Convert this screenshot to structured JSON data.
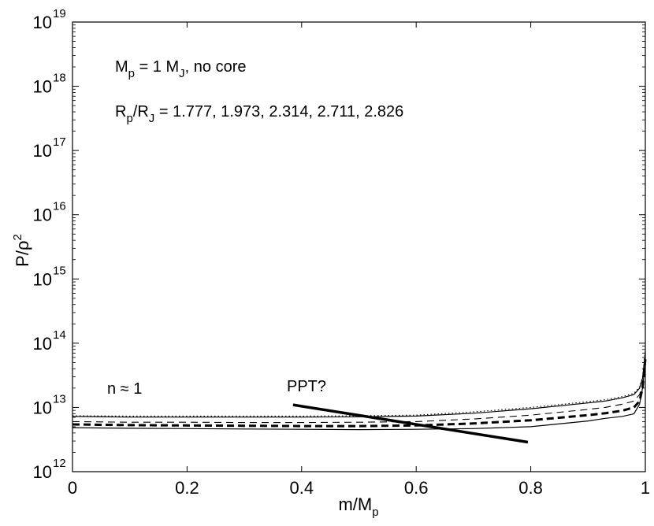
{
  "chart_data": {
    "type": "line",
    "xlabel": "m/M",
    "xlabel_sub": "p",
    "ylabel": "P/ρ",
    "ylabel_sup": "2",
    "xlim": [
      0,
      1
    ],
    "ylim_log10": [
      12,
      19
    ],
    "xticks": [
      {
        "value": 0,
        "label": "0"
      },
      {
        "value": 0.2,
        "label": "0.2"
      },
      {
        "value": 0.4,
        "label": "0.4"
      },
      {
        "value": 0.6,
        "label": "0.6"
      },
      {
        "value": 0.8,
        "label": "0.8"
      },
      {
        "value": 1,
        "label": "1"
      }
    ],
    "yticks": [
      {
        "exp": 12,
        "base": "10",
        "sup": "12"
      },
      {
        "exp": 13,
        "base": "10",
        "sup": "13"
      },
      {
        "exp": 14,
        "base": "10",
        "sup": "14"
      },
      {
        "exp": 15,
        "base": "10",
        "sup": "15"
      },
      {
        "exp": 16,
        "base": "10",
        "sup": "16"
      },
      {
        "exp": 17,
        "base": "10",
        "sup": "17"
      },
      {
        "exp": 18,
        "base": "10",
        "sup": "18"
      },
      {
        "exp": 19,
        "base": "10",
        "sup": "19"
      }
    ],
    "series": [
      {
        "name": "R/RJ = 1.777",
        "style": "solid-thin",
        "x": [
          0,
          0.1,
          0.2,
          0.3,
          0.4,
          0.5,
          0.6,
          0.7,
          0.8,
          0.9,
          0.93,
          0.96,
          0.98,
          0.99,
          0.995,
          1.0
        ],
        "log10y": [
          12.685,
          12.675,
          12.67,
          12.665,
          12.66,
          12.655,
          12.66,
          12.67,
          12.7,
          12.79,
          12.83,
          12.86,
          12.9,
          13.05,
          13.3,
          13.7
        ]
      },
      {
        "name": "R/RJ = 1.973",
        "style": "dashed-thick",
        "x": [
          0,
          0.1,
          0.2,
          0.3,
          0.4,
          0.5,
          0.6,
          0.7,
          0.8,
          0.9,
          0.93,
          0.96,
          0.98,
          0.99,
          0.995,
          1.0
        ],
        "log10y": [
          12.735,
          12.725,
          12.72,
          12.715,
          12.71,
          12.71,
          12.72,
          12.75,
          12.8,
          12.88,
          12.91,
          12.95,
          13.0,
          13.1,
          13.3,
          13.75
        ]
      },
      {
        "name": "R/RJ = 2.314",
        "style": "dashed-thin",
        "x": [
          0,
          0.1,
          0.2,
          0.3,
          0.4,
          0.5,
          0.6,
          0.7,
          0.8,
          0.9,
          0.93,
          0.96,
          0.98,
          0.99,
          0.995,
          1.0
        ],
        "log10y": [
          12.78,
          12.77,
          12.77,
          12.765,
          12.765,
          12.77,
          12.78,
          12.82,
          12.88,
          12.97,
          13.0,
          13.05,
          13.1,
          13.2,
          13.35,
          13.8
        ]
      },
      {
        "name": "R/RJ = 2.711",
        "style": "solid-thin",
        "x": [
          0,
          0.1,
          0.2,
          0.3,
          0.4,
          0.5,
          0.6,
          0.7,
          0.8,
          0.9,
          0.93,
          0.96,
          0.98,
          0.99,
          0.995,
          1.0
        ],
        "log10y": [
          12.86,
          12.85,
          12.85,
          12.85,
          12.85,
          12.855,
          12.865,
          12.91,
          12.98,
          13.07,
          13.1,
          13.15,
          13.2,
          13.3,
          13.45,
          13.85
        ]
      },
      {
        "name": "R/RJ = 2.826",
        "style": "dotted",
        "x": [
          0,
          0.1,
          0.2,
          0.3,
          0.4,
          0.5,
          0.6,
          0.7,
          0.8,
          0.9,
          0.93,
          0.96,
          0.98,
          0.99,
          0.995,
          1.0
        ],
        "log10y": [
          12.87,
          12.865,
          12.865,
          12.865,
          12.865,
          12.87,
          12.88,
          12.93,
          13.0,
          13.09,
          13.12,
          13.17,
          13.22,
          13.32,
          13.47,
          13.9
        ]
      }
    ],
    "ppt_line": {
      "x": [
        0.385,
        0.795
      ],
      "log10y": [
        13.04,
        12.46
      ]
    },
    "annotations": {
      "mass_prefix": "M",
      "mass_sub": "p",
      "mass_mid": " = 1 M",
      "mass_sub2": "J",
      "mass_suffix": ",  no core",
      "radius_prefix": "R",
      "radius_sub": "p",
      "radius_mid": "/R",
      "radius_sub2": "J",
      "radius_values": " = 1.777, 1.973, 2.314, 2.711, 2.826",
      "polytrope": "n ≈ 1",
      "ppt": "PPT?"
    }
  }
}
